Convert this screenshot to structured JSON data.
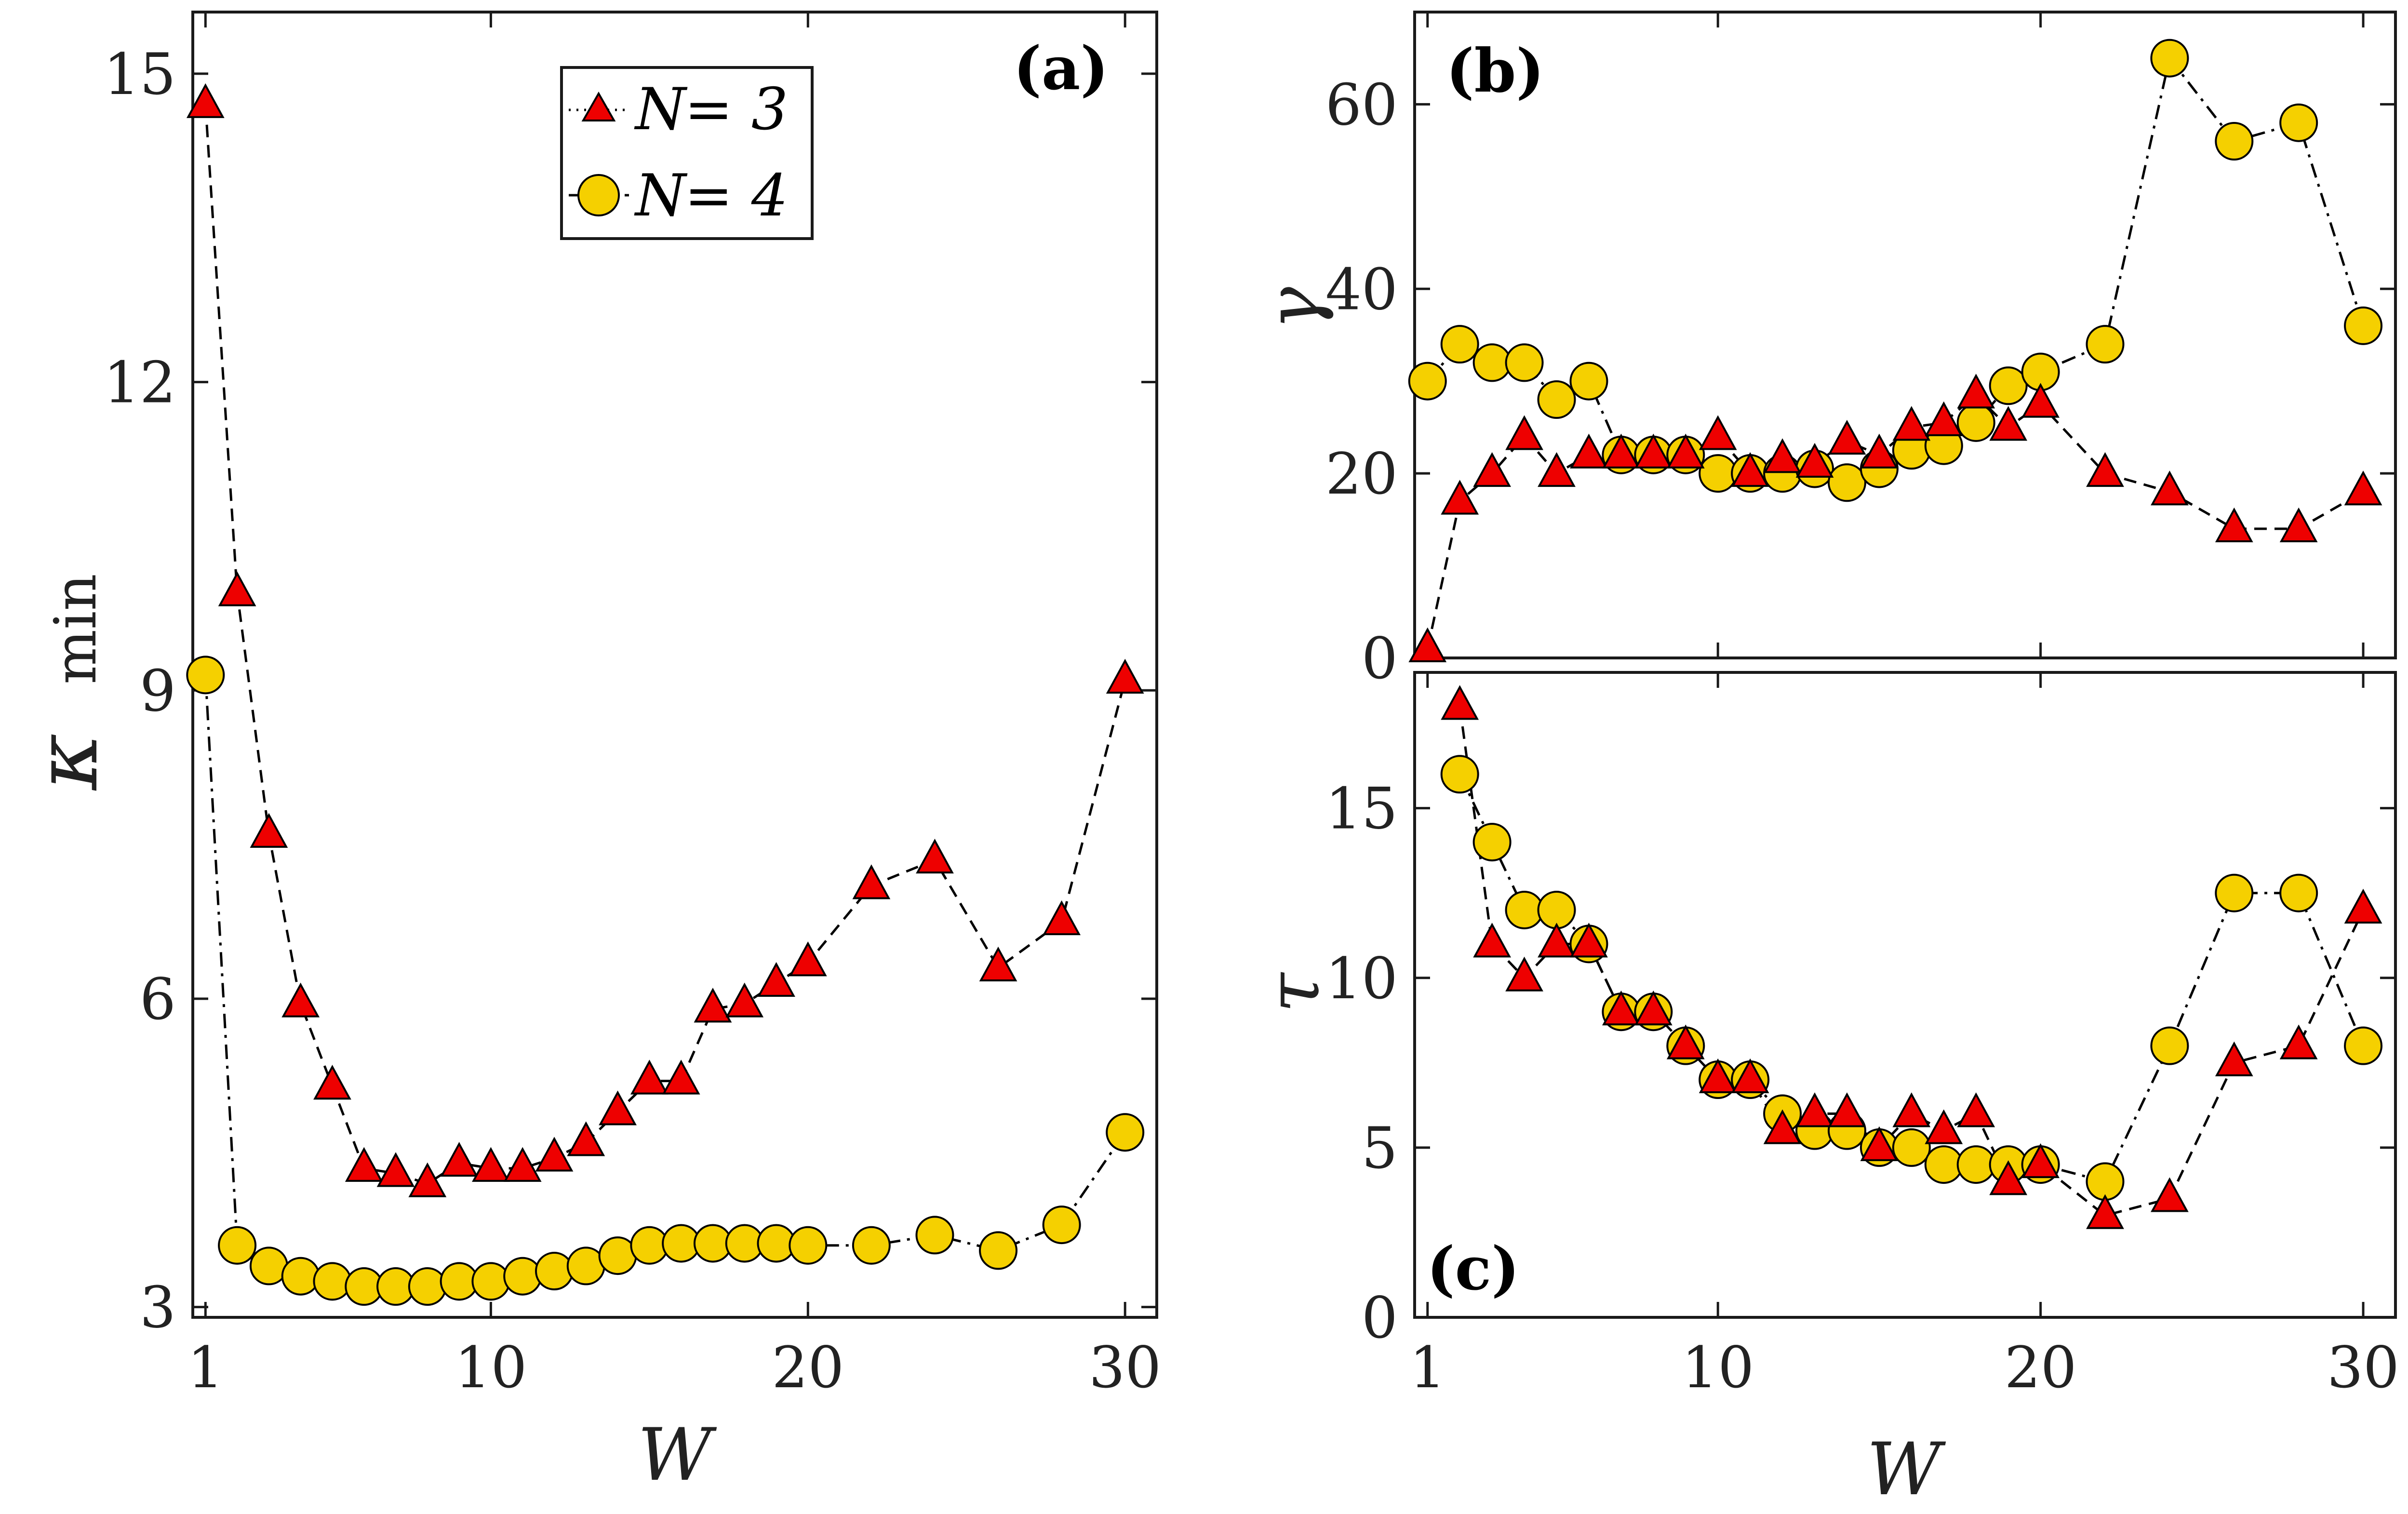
{
  "chart_data": [
    {
      "panel": "(a)",
      "type": "line",
      "xlabel": "W",
      "ylabel": "κ",
      "ylabel_subscript": "min",
      "xlim": [
        0.6,
        31
      ],
      "ylim": [
        2.9,
        15.6
      ],
      "xticks": [
        1,
        10,
        20,
        30
      ],
      "yticks": [
        3,
        6,
        9,
        12,
        15
      ],
      "legend": {
        "placement": "top-center",
        "entries": [
          {
            "symbol": "N",
            "text": "= 3"
          },
          {
            "symbol": "N",
            "text": "= 4"
          }
        ]
      },
      "series": [
        {
          "name": "N = 3",
          "marker": "triangle",
          "style": "dashed",
          "x": [
            1,
            2,
            3,
            4,
            5,
            6,
            7,
            8,
            9,
            10,
            11,
            12,
            13,
            14,
            15,
            16,
            17,
            18,
            19,
            20,
            22,
            24,
            26,
            28,
            30
          ],
          "y": [
            14.7,
            9.95,
            7.6,
            5.95,
            5.15,
            4.35,
            4.3,
            4.2,
            4.4,
            4.35,
            4.35,
            4.45,
            4.6,
            4.9,
            5.2,
            5.2,
            5.9,
            5.95,
            6.15,
            6.35,
            7.1,
            7.35,
            6.3,
            6.75,
            9.1
          ]
        },
        {
          "name": "N = 4",
          "marker": "circle",
          "style": "dashdot",
          "x": [
            1,
            2,
            3,
            4,
            5,
            6,
            7,
            8,
            9,
            10,
            11,
            12,
            13,
            14,
            15,
            16,
            17,
            18,
            19,
            20,
            22,
            24,
            26,
            28,
            30
          ],
          "y": [
            9.15,
            3.6,
            3.4,
            3.3,
            3.25,
            3.2,
            3.2,
            3.2,
            3.25,
            3.25,
            3.3,
            3.35,
            3.4,
            3.5,
            3.6,
            3.62,
            3.62,
            3.62,
            3.62,
            3.6,
            3.6,
            3.7,
            3.55,
            3.8,
            4.7
          ]
        }
      ]
    },
    {
      "panel": "(b)",
      "type": "line",
      "xlabel": "",
      "ylabel": "γ",
      "xlim": [
        0.6,
        31
      ],
      "ylim": [
        0,
        70
      ],
      "xticks": [
        1,
        10,
        20,
        30
      ],
      "yticks": [
        0,
        20,
        40,
        60
      ],
      "series": [
        {
          "name": "N = 3",
          "marker": "triangle",
          "style": "dashed",
          "x": [
            1,
            2,
            3,
            4,
            5,
            6,
            7,
            8,
            9,
            10,
            11,
            12,
            13,
            14,
            15,
            16,
            17,
            18,
            19,
            20,
            22,
            24,
            26,
            28,
            30
          ],
          "y": [
            1,
            17,
            20,
            24,
            20,
            22,
            22,
            22,
            22,
            24,
            20,
            21.5,
            21,
            23.5,
            22,
            25,
            25.5,
            28.5,
            25,
            27.5,
            20,
            18,
            14,
            14,
            18
          ]
        },
        {
          "name": "N = 4",
          "marker": "circle",
          "style": "dashdot",
          "x": [
            1,
            2,
            3,
            4,
            5,
            6,
            7,
            8,
            9,
            10,
            11,
            12,
            13,
            14,
            15,
            16,
            17,
            18,
            19,
            20,
            22,
            24,
            26,
            28,
            30
          ],
          "y": [
            30,
            34,
            32,
            32,
            28,
            30,
            22,
            22,
            22,
            20,
            20,
            20,
            20.5,
            19,
            20.5,
            22.5,
            23,
            25.5,
            29.5,
            31,
            34,
            65,
            56,
            58,
            36
          ]
        }
      ]
    },
    {
      "panel": "(c)",
      "type": "line",
      "xlabel": "W",
      "ylabel": "τ",
      "xlim": [
        0.6,
        31
      ],
      "ylim": [
        0,
        19
      ],
      "xticks": [
        1,
        10,
        20,
        30
      ],
      "yticks": [
        0,
        5,
        10,
        15
      ],
      "series": [
        {
          "name": "N = 3",
          "marker": "triangle",
          "style": "dashed",
          "x": [
            2,
            3,
            4,
            5,
            6,
            7,
            8,
            9,
            10,
            11,
            12,
            13,
            14,
            15,
            16,
            17,
            18,
            19,
            20,
            22,
            24,
            26,
            28,
            30
          ],
          "y": [
            18,
            11,
            10,
            11,
            11,
            9,
            9,
            8,
            7,
            7,
            5.5,
            6,
            6,
            5,
            6,
            5.5,
            6,
            4,
            4.5,
            3,
            3.5,
            7.5,
            8,
            12
          ]
        },
        {
          "name": "N = 4",
          "marker": "circle",
          "style": "dashdot",
          "x": [
            2,
            3,
            4,
            5,
            6,
            7,
            8,
            9,
            10,
            11,
            12,
            13,
            14,
            15,
            16,
            17,
            18,
            19,
            20,
            22,
            24,
            26,
            28,
            30
          ],
          "y": [
            16,
            14,
            12,
            12,
            11,
            9,
            9,
            8,
            7,
            7,
            6,
            5.5,
            5.5,
            5,
            5,
            4.5,
            4.5,
            4.5,
            4.5,
            4,
            8,
            12.5,
            12.5,
            8
          ]
        }
      ]
    }
  ],
  "style": {
    "triangle_color": "#ee0000",
    "circle_color": "#f5d000",
    "marker_edge": "#000000"
  }
}
